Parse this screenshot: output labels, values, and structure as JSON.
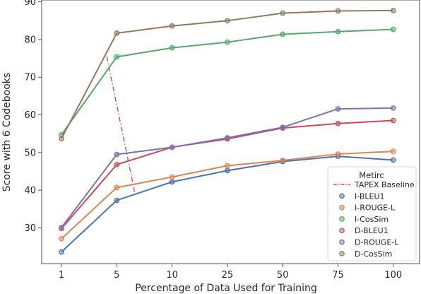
{
  "chart_data": {
    "type": "line",
    "title": "",
    "xlabel": "Percentage of Data Used for Training",
    "ylabel": "Score with 6 Codebooks",
    "categories": [
      "1",
      "5",
      "10",
      "25",
      "50",
      "75",
      "100"
    ],
    "ylim": [
      20.5,
      90.5
    ],
    "yticks": [
      30,
      40,
      50,
      60,
      70,
      80,
      90
    ],
    "grid": false,
    "legend": {
      "title": "Metirc",
      "placement": "lower-right"
    },
    "baseline": {
      "name": "TAPEX Baseline",
      "color": "#c44e52",
      "style": "dash-dot",
      "x": [
        0.82,
        1.33
      ],
      "y": [
        75.5,
        39
      ]
    },
    "series": [
      {
        "name": "I-BLEU1",
        "color": "#4c72b0",
        "values": [
          23.6,
          37.3,
          42.2,
          45.2,
          47.6,
          49.0,
          48.0
        ]
      },
      {
        "name": "I-ROUGE-L",
        "color": "#dd8452",
        "values": [
          27.1,
          40.7,
          43.5,
          46.5,
          47.9,
          49.6,
          50.3
        ]
      },
      {
        "name": "I-CosSim",
        "color": "#55a868",
        "values": [
          54.7,
          75.4,
          77.8,
          79.3,
          81.4,
          82.1,
          82.7
        ]
      },
      {
        "name": "D-BLEU1",
        "color": "#c44e52",
        "values": [
          29.8,
          46.8,
          51.4,
          53.6,
          56.5,
          57.7,
          58.5
        ]
      },
      {
        "name": "D-ROUGE-L",
        "color": "#8172b3",
        "values": [
          30.1,
          49.5,
          51.4,
          53.9,
          56.7,
          61.6,
          61.8
        ]
      },
      {
        "name": "D-CosSim",
        "color": "#937860",
        "values": [
          53.7,
          81.7,
          83.6,
          85.0,
          87.0,
          87.6,
          87.7
        ]
      }
    ]
  }
}
